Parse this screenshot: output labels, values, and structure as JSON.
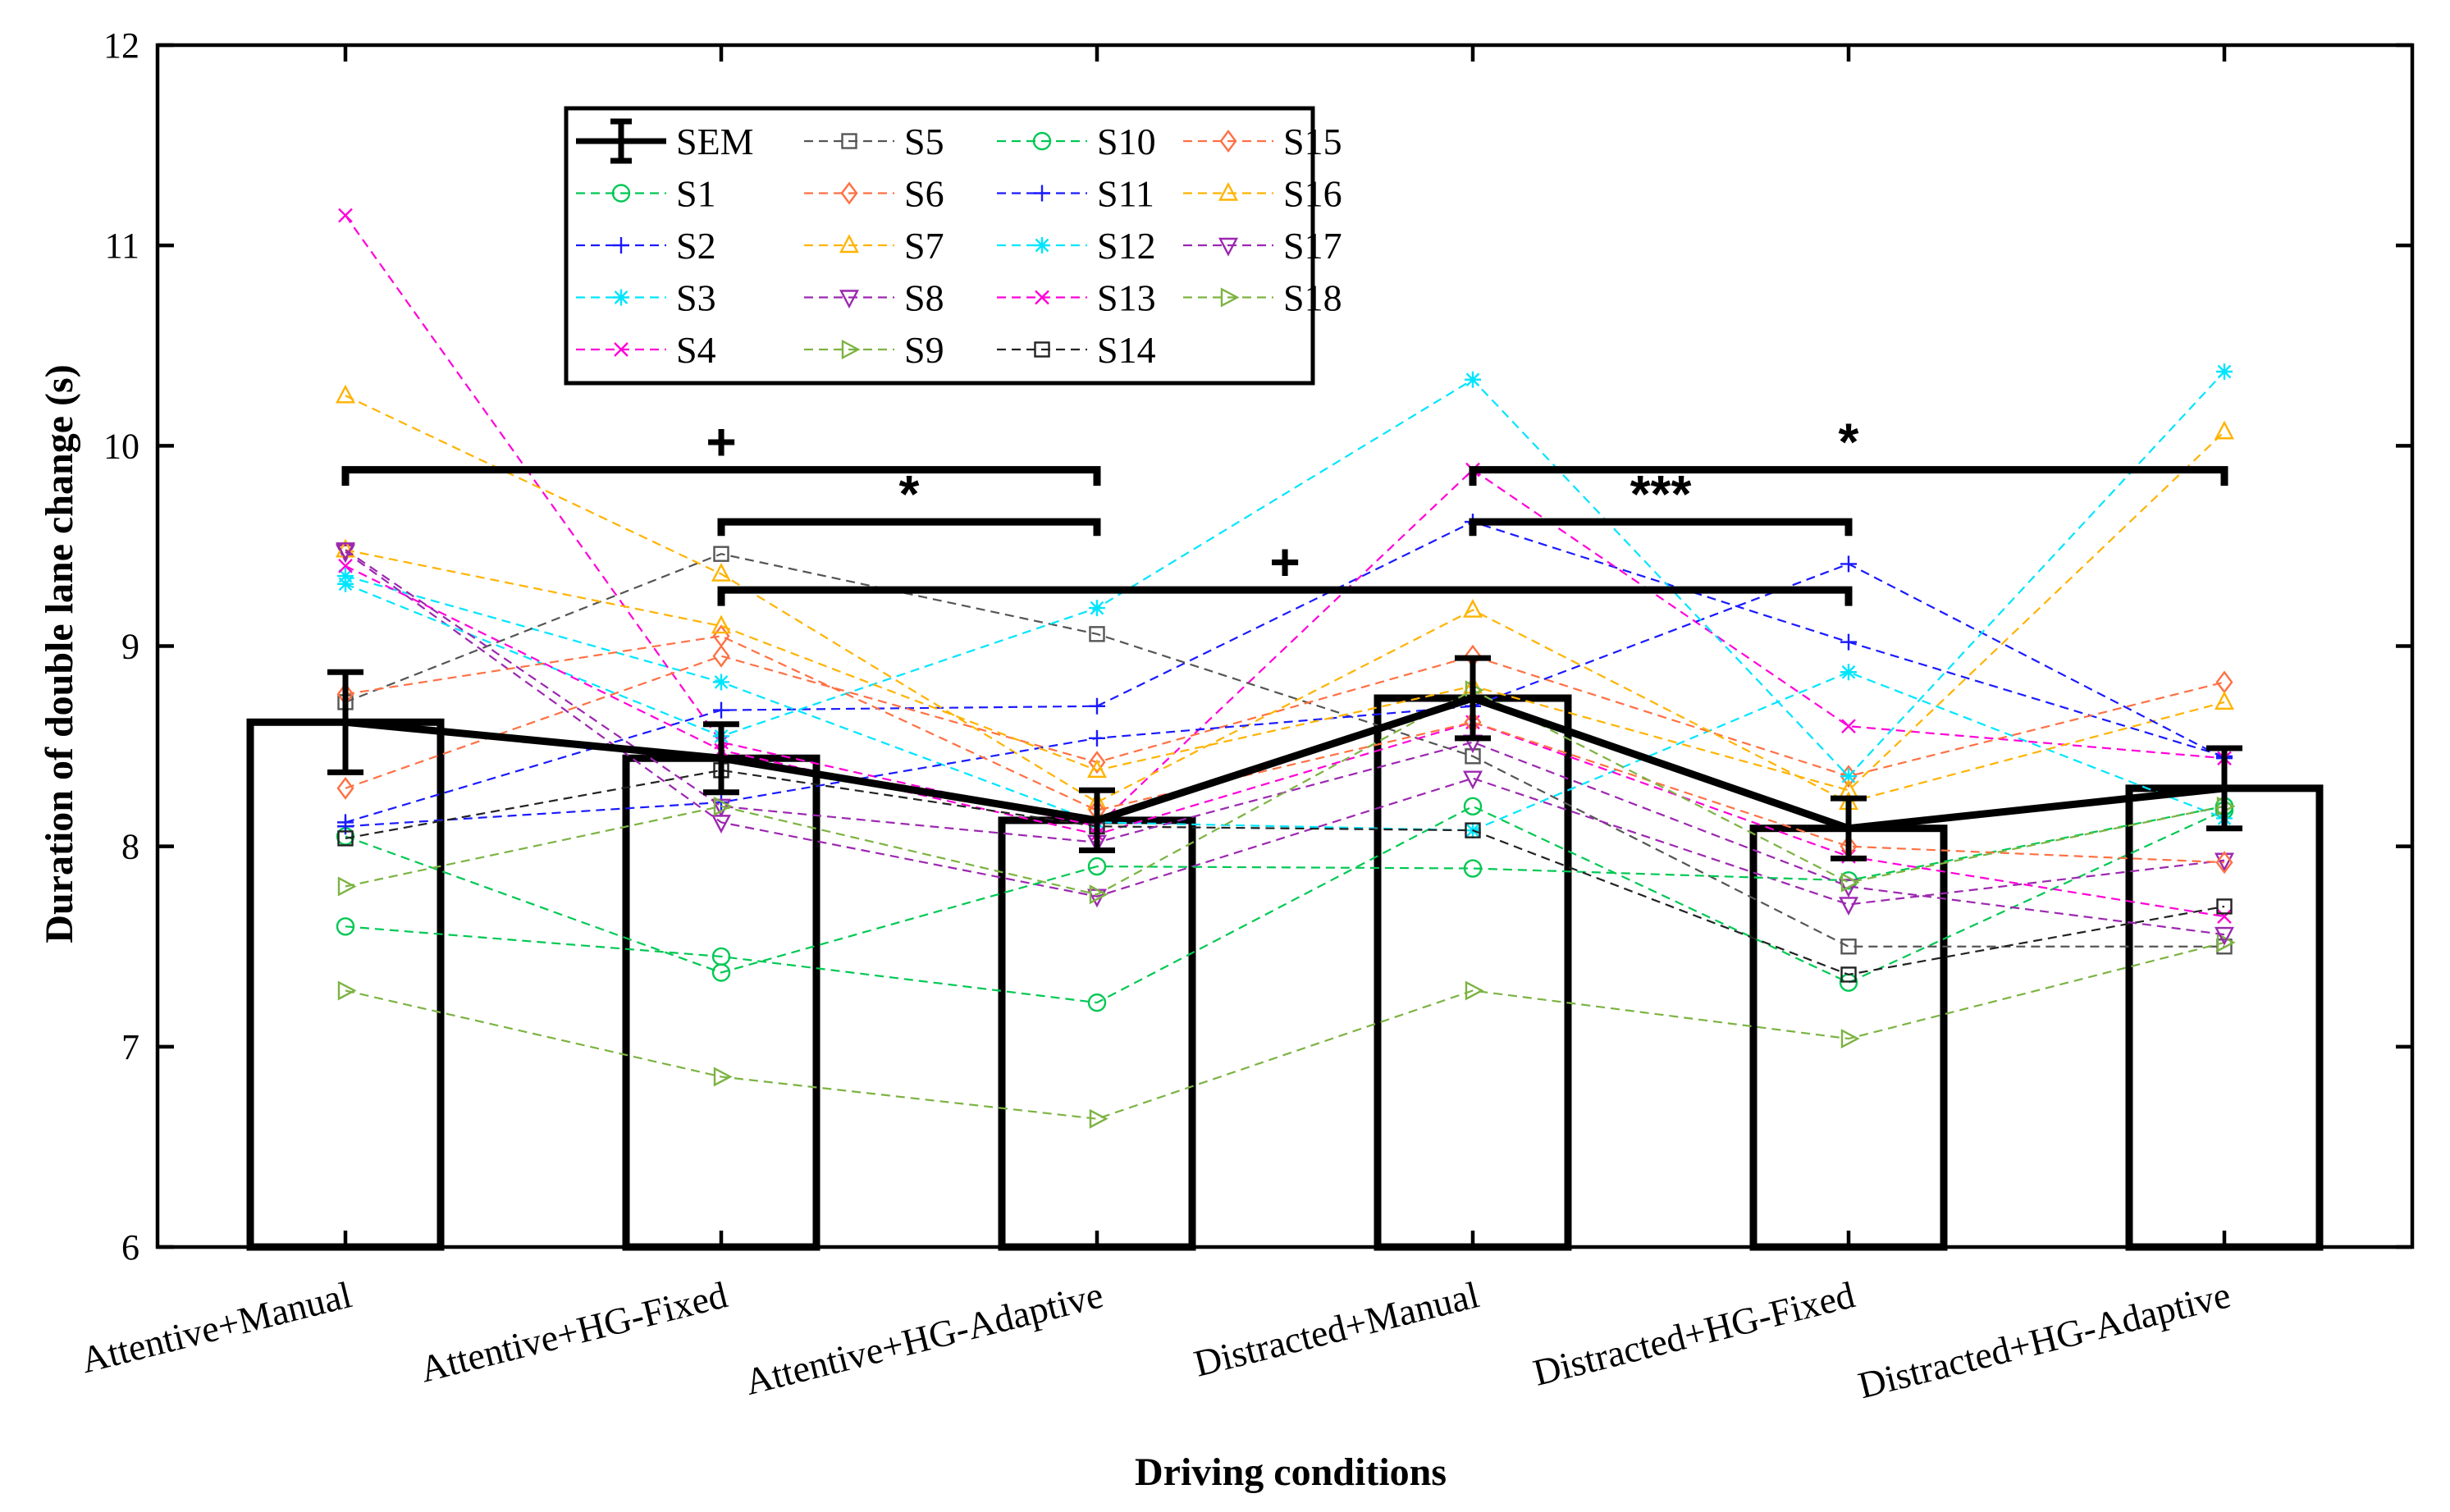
{
  "chart_data": {
    "type": "bar",
    "title": "",
    "xlabel": "Driving conditions",
    "ylabel": "Duration of double lane change (s)",
    "ylim": [
      6,
      12
    ],
    "yticks": [
      "6",
      "7",
      "8",
      "9",
      "10",
      "11",
      "12"
    ],
    "grid": false,
    "legend_position": "top-left",
    "categories": [
      "Attentive+Manual",
      "Attentive+HG-Fixed",
      "Attentive+HG-Adaptive",
      "Distracted+Manual",
      "Distracted+HG-Fixed",
      "Distracted+HG-Adaptive"
    ],
    "means": [
      8.62,
      8.44,
      8.13,
      8.74,
      8.09,
      8.29
    ],
    "sem": [
      0.25,
      0.17,
      0.15,
      0.2,
      0.15,
      0.2
    ],
    "sem_label": "SEM",
    "subjects": [
      {
        "name": "S1",
        "color": "#00c853",
        "marker": "circle",
        "values": [
          7.6,
          7.45,
          7.22,
          8.2,
          7.32,
          8.18
        ]
      },
      {
        "name": "S2",
        "color": "#1a1aff",
        "marker": "plus",
        "values": [
          8.12,
          8.68,
          8.7,
          9.62,
          9.02,
          8.45
        ]
      },
      {
        "name": "S3",
        "color": "#00e5ff",
        "marker": "asterisk",
        "values": [
          9.35,
          8.82,
          8.12,
          8.08,
          8.87,
          8.14
        ]
      },
      {
        "name": "S4",
        "color": "#ff00d8",
        "marker": "x",
        "values": [
          11.15,
          8.52,
          8.1,
          9.88,
          8.6,
          8.44
        ]
      },
      {
        "name": "S5",
        "color": "#555555",
        "marker": "square",
        "values": [
          8.72,
          9.46,
          9.06,
          8.45,
          7.5,
          7.5
        ]
      },
      {
        "name": "S6",
        "color": "#ff7043",
        "marker": "diamond",
        "values": [
          8.29,
          8.95,
          8.42,
          8.95,
          8.35,
          8.82
        ]
      },
      {
        "name": "S7",
        "color": "#ffb300",
        "marker": "triangle",
        "values": [
          10.25,
          9.36,
          8.22,
          9.18,
          8.22,
          8.72
        ]
      },
      {
        "name": "S8",
        "color": "#9c27b0",
        "marker": "triangle-down",
        "values": [
          9.47,
          8.12,
          7.75,
          8.34,
          7.71,
          7.93
        ]
      },
      {
        "name": "S9",
        "color": "#7cb342",
        "marker": "triangle-right",
        "values": [
          7.28,
          6.85,
          6.64,
          7.28,
          7.04,
          7.52
        ]
      },
      {
        "name": "S10",
        "color": "#00c853",
        "marker": "circle",
        "values": [
          8.05,
          7.37,
          7.9,
          7.89,
          7.83,
          8.2
        ]
      },
      {
        "name": "S11",
        "color": "#1a1aff",
        "marker": "plus",
        "values": [
          8.1,
          8.22,
          8.54,
          8.7,
          9.41,
          8.44
        ]
      },
      {
        "name": "S12",
        "color": "#00e5ff",
        "marker": "asterisk",
        "values": [
          9.31,
          8.55,
          9.19,
          10.33,
          8.35,
          10.37
        ]
      },
      {
        "name": "S13",
        "color": "#ff00d8",
        "marker": "x",
        "values": [
          9.4,
          8.48,
          8.06,
          8.62,
          7.95,
          7.65
        ]
      },
      {
        "name": "S14",
        "color": "#222222",
        "marker": "square",
        "values": [
          8.04,
          8.38,
          8.1,
          8.08,
          7.36,
          7.7
        ]
      },
      {
        "name": "S15",
        "color": "#ff7043",
        "marker": "diamond",
        "values": [
          8.76,
          9.05,
          8.18,
          8.62,
          8.0,
          7.92
        ]
      },
      {
        "name": "S16",
        "color": "#ffb300",
        "marker": "triangle",
        "values": [
          9.48,
          9.1,
          8.38,
          8.8,
          8.28,
          10.07
        ]
      },
      {
        "name": "S17",
        "color": "#9c27b0",
        "marker": "triangle-down",
        "values": [
          9.48,
          8.2,
          8.02,
          8.52,
          7.8,
          7.56
        ]
      },
      {
        "name": "S18",
        "color": "#7cb342",
        "marker": "triangle-right",
        "values": [
          7.8,
          8.2,
          7.76,
          8.78,
          7.82,
          8.2
        ]
      }
    ],
    "significance": [
      {
        "label": "+",
        "from": 0,
        "to": 2,
        "level": 9.88,
        "tick_to": 9.8
      },
      {
        "label": "*",
        "from": 1,
        "to": 2,
        "level": 9.62,
        "tick_to": 9.55
      },
      {
        "label": "+",
        "from": 1,
        "to": 4,
        "level": 9.28,
        "tick_to": 9.2
      },
      {
        "label": "*",
        "from": 3,
        "to": 5,
        "level": 9.88,
        "tick_to": 9.8
      },
      {
        "label": "***",
        "from": 3,
        "to": 4,
        "level": 9.62,
        "tick_to": 9.55
      }
    ]
  }
}
